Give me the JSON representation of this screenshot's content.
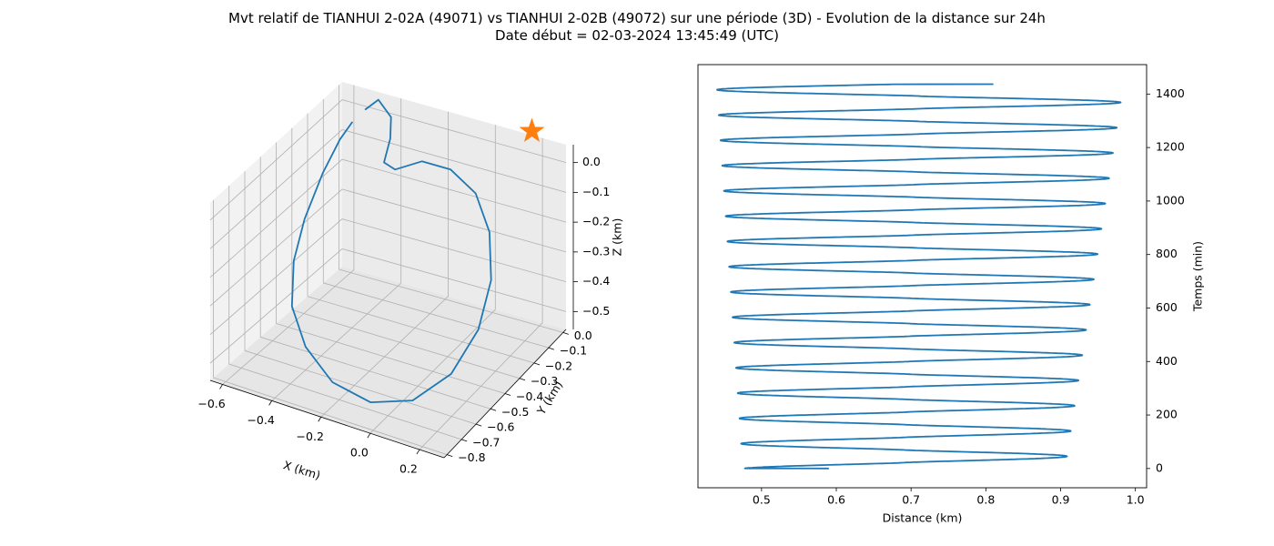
{
  "title_line1": "Mvt relatif de TIANHUI 2-02A (49071) vs TIANHUI 2-02B (49072) sur une période (3D) - Evolution de la distance sur 24h",
  "title_line2": "Date début = 02-03-2024 13:45:49 (UTC)",
  "colors": {
    "series": "#1f77b4",
    "marker": "#ff7f0e",
    "pane": "#f2f2f2",
    "grid": "#b0b0b0"
  },
  "chart_data": [
    {
      "type": "line3d",
      "xlabel": "X (km)",
      "ylabel": "Y (km)",
      "zlabel": "Z (km)",
      "xlim": [
        -0.65,
        0.3
      ],
      "ylim": [
        -0.82,
        0.02
      ],
      "zlim": [
        -0.56,
        0.06
      ],
      "xticks": [
        "−0.6",
        "−0.4",
        "−0.2",
        "0.0",
        "0.2"
      ],
      "yticks": [
        "−0.8",
        "−0.7",
        "−0.6",
        "−0.5",
        "−0.4",
        "−0.3",
        "−0.2",
        "−0.1",
        "0.0"
      ],
      "zticks": [
        "−0.5",
        "−0.4",
        "−0.3",
        "−0.2",
        "−0.1",
        "0.0"
      ],
      "series": [
        {
          "points": [
            [
              -0.56,
              -0.05,
              -0.02
            ],
            [
              -0.58,
              -0.1,
              -0.06
            ],
            [
              -0.6,
              -0.18,
              -0.14
            ],
            [
              -0.61,
              -0.28,
              -0.25
            ],
            [
              -0.59,
              -0.38,
              -0.34
            ],
            [
              -0.52,
              -0.5,
              -0.42
            ],
            [
              -0.4,
              -0.6,
              -0.48
            ],
            [
              -0.24,
              -0.68,
              -0.52
            ],
            [
              -0.06,
              -0.72,
              -0.52
            ],
            [
              0.1,
              -0.7,
              -0.48
            ],
            [
              0.21,
              -0.62,
              -0.4
            ],
            [
              0.25,
              -0.5,
              -0.3
            ],
            [
              0.23,
              -0.38,
              -0.2
            ],
            [
              0.15,
              -0.26,
              -0.12
            ],
            [
              0.03,
              -0.16,
              -0.07
            ],
            [
              -0.12,
              -0.09,
              -0.06
            ],
            [
              -0.26,
              -0.06,
              -0.08
            ],
            [
              -0.38,
              -0.05,
              -0.14
            ],
            [
              -0.42,
              -0.06,
              -0.12
            ],
            [
              -0.4,
              -0.05,
              -0.04
            ],
            [
              -0.41,
              -0.03,
              0.02
            ],
            [
              -0.47,
              -0.02,
              0.06
            ],
            [
              -0.52,
              -0.03,
              0.02
            ]
          ]
        }
      ],
      "marker": {
        "symbol": "star",
        "point": [
          0.18,
          -0.02,
          0.1
        ]
      }
    },
    {
      "type": "line",
      "xlabel": "Distance (km)",
      "ylabel": "Temps (min)",
      "xlim": [
        0.415,
        1.015
      ],
      "ylim": [
        -72,
        1510
      ],
      "xticks": [
        0.5,
        0.6,
        0.7,
        0.8,
        0.9,
        1.0
      ],
      "xtick_labels": [
        "0.5",
        "0.6",
        "0.7",
        "0.8",
        "0.9",
        "1.0"
      ],
      "yticks": [
        0,
        200,
        400,
        600,
        800,
        1000,
        1200,
        1400
      ],
      "yaxis_position": "right",
      "model": {
        "t_start": 0,
        "t_end": 1437,
        "orbit_period_min": 94.5,
        "start_distance": 0.59,
        "end_distance": 0.81,
        "max_distance_start": 0.906,
        "max_distance_end": 0.984,
        "min_distance_start": 0.475,
        "min_distance_end": 0.44,
        "mid_distance_start": 0.668,
        "mid_distance_end": 0.617
      }
    }
  ]
}
